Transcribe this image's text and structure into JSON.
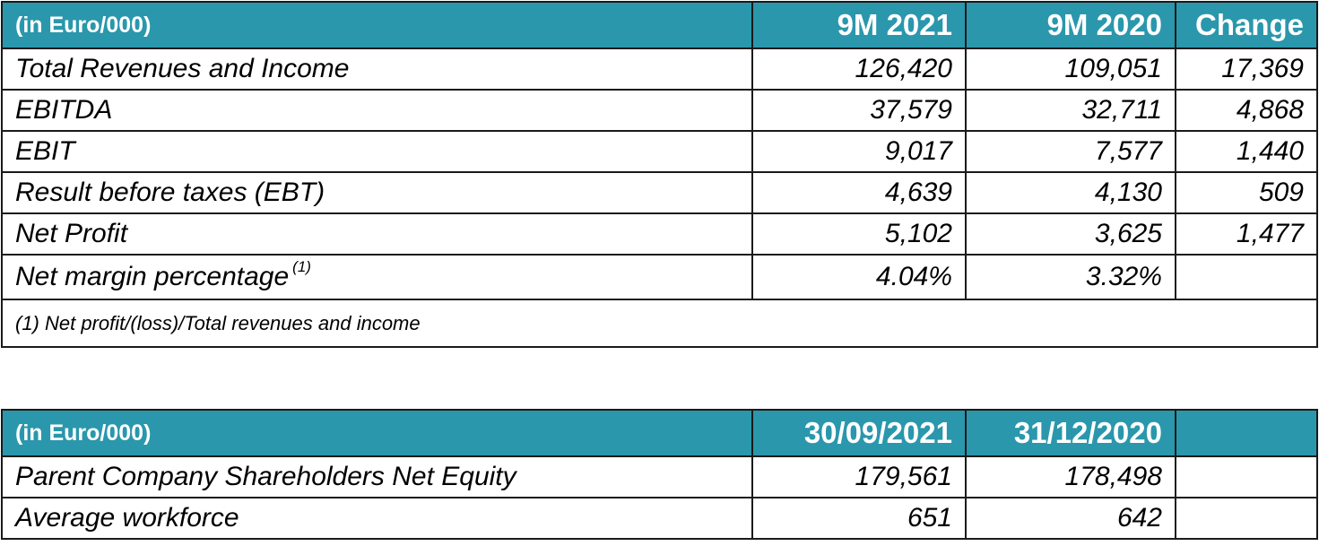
{
  "table1": {
    "headers": [
      "(in Euro/000)",
      "9M 2021",
      "9M 2020",
      "Change"
    ],
    "rows": [
      {
        "label": "Total Revenues and Income",
        "v2021": "126,420",
        "v2020": "109,051",
        "change": "17,369"
      },
      {
        "label": "EBITDA",
        "v2021": "37,579",
        "v2020": "32,711",
        "change": "4,868"
      },
      {
        "label": "EBIT",
        "v2021": "9,017",
        "v2020": "7,577",
        "change": "1,440"
      },
      {
        "label": "Result before taxes (EBT)",
        "v2021": "4,639",
        "v2020": "4,130",
        "change": "509"
      },
      {
        "label": "Net Profit",
        "v2021": "5,102",
        "v2020": "3,625",
        "change": "1,477"
      },
      {
        "label": "Net margin percentage",
        "sup": "(1)",
        "v2021": "4.04%",
        "v2020": "3.32%",
        "change": ""
      }
    ],
    "footnote": "(1) Net profit/(loss)/Total revenues and income"
  },
  "table2": {
    "headers": [
      "(in Euro/000)",
      "30/09/2021",
      "31/12/2020",
      ""
    ],
    "rows": [
      {
        "label": "Parent Company Shareholders Net Equity",
        "v1": "179,561",
        "v2": "178,498",
        "v3": ""
      },
      {
        "label": "Average workforce",
        "v1": "651",
        "v2": "642",
        "v3": ""
      }
    ]
  },
  "colors": {
    "header_background": "#2a97ac",
    "header_text": "#ffffff",
    "border": "#1a1a1a"
  }
}
